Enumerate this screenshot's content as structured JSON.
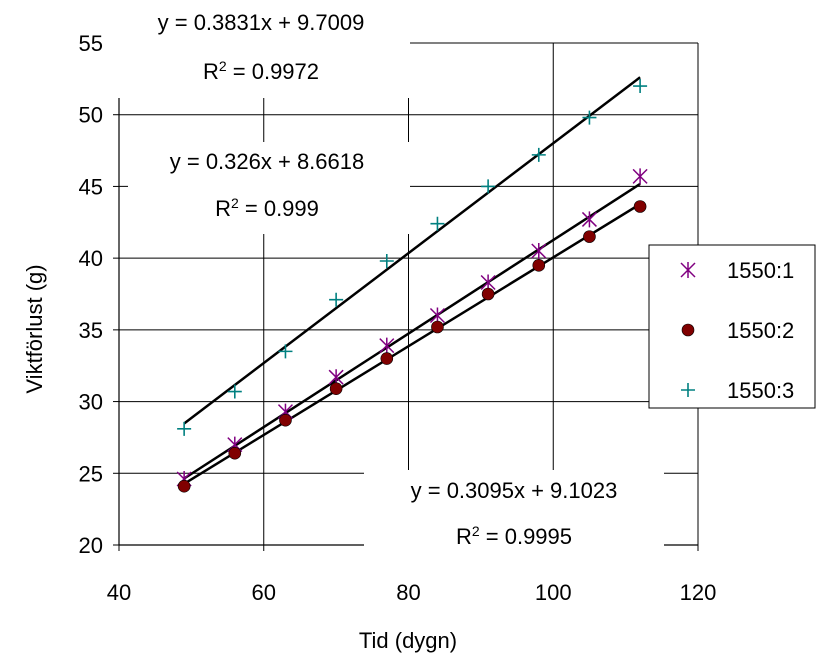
{
  "chart_data": {
    "type": "scatter",
    "xlabel": "Tid (dygn)",
    "ylabel": "Viktförlust (g)",
    "xlim": [
      40,
      120
    ],
    "ylim": [
      20,
      55
    ],
    "xticks": [
      40,
      60,
      80,
      100,
      120
    ],
    "yticks": [
      20,
      25,
      30,
      35,
      40,
      45,
      50,
      55
    ],
    "grid": true,
    "legend_position": "right",
    "series": [
      {
        "name": "1550:1",
        "marker": "asterisk",
        "color": "#800080",
        "x": [
          49,
          56,
          63,
          70,
          77,
          84,
          91,
          98,
          105,
          112
        ],
        "y": [
          24.6,
          27.0,
          29.3,
          31.7,
          33.9,
          36.0,
          38.3,
          40.5,
          42.7,
          45.7
        ]
      },
      {
        "name": "1550:2",
        "marker": "circle",
        "color": "#800000",
        "x": [
          49,
          56,
          63,
          70,
          77,
          84,
          91,
          98,
          105,
          112
        ],
        "y": [
          24.1,
          26.4,
          28.7,
          30.9,
          33.0,
          35.2,
          37.5,
          39.5,
          41.5,
          43.6
        ]
      },
      {
        "name": "1550:3",
        "marker": "plus",
        "color": "#008080",
        "x": [
          49,
          56,
          63,
          70,
          77,
          84,
          91,
          98,
          105,
          112
        ],
        "y": [
          28.1,
          30.7,
          33.5,
          37.1,
          39.8,
          42.4,
          45.0,
          47.2,
          49.8,
          52.0
        ]
      }
    ],
    "trendlines": [
      {
        "slope": 0.3831,
        "intercept": 9.7009,
        "x_range": [
          49,
          112
        ],
        "equation": "y = 0.3831x + 9.7009",
        "r2_label": "R",
        "r2_exp": "2",
        "r2_value": " = 0.9972"
      },
      {
        "slope": 0.326,
        "intercept": 8.6618,
        "x_range": [
          49,
          112
        ],
        "equation": "y = 0.326x + 8.6618",
        "r2_label": "R",
        "r2_exp": "2",
        "r2_value": " = 0.999"
      },
      {
        "slope": 0.3095,
        "intercept": 9.1023,
        "x_range": [
          49,
          112
        ],
        "equation": "y = 0.3095x + 9.1023",
        "r2_label": "R",
        "r2_exp": "2",
        "r2_value": " = 0.9995"
      }
    ]
  }
}
